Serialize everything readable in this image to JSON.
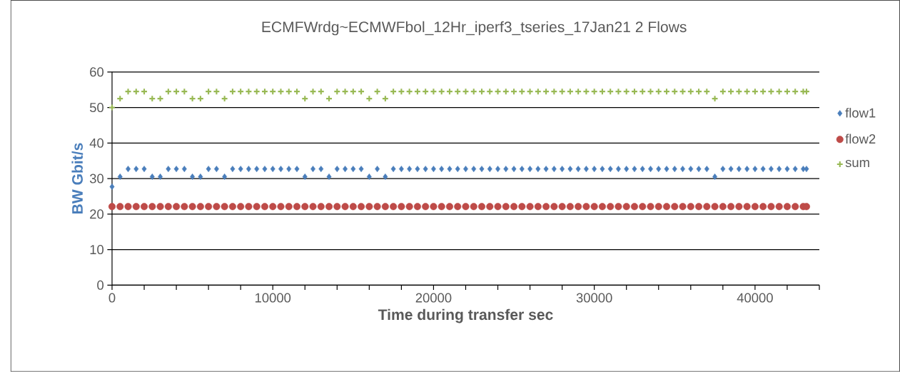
{
  "chart_data": {
    "type": "scatter",
    "title": "ECMFWrdg~ECMWFbol_12Hr_iperf3_tseries_17Jan21 2 Flows",
    "xlabel": "Time during transfer sec",
    "ylabel": "BW Gbit/s",
    "x": [
      0,
      500,
      1000,
      1500,
      2000,
      2500,
      3000,
      3500,
      4000,
      4500,
      5000,
      5500,
      6000,
      6500,
      7000,
      7500,
      8000,
      8500,
      9000,
      9500,
      10000,
      10500,
      11000,
      11500,
      12000,
      12500,
      13000,
      13500,
      14000,
      14500,
      15000,
      15500,
      16000,
      16500,
      17000,
      17500,
      18000,
      18500,
      19000,
      19500,
      20000,
      20500,
      21000,
      21500,
      22000,
      22500,
      23000,
      23500,
      24000,
      24500,
      25000,
      25500,
      26000,
      26500,
      27000,
      27500,
      28000,
      28500,
      29000,
      29500,
      30000,
      30500,
      31000,
      31500,
      32000,
      32500,
      33000,
      33500,
      34000,
      34500,
      35000,
      35500,
      36000,
      36500,
      37000,
      37500,
      38000,
      38500,
      39000,
      39500,
      40000,
      40500,
      41000,
      41500,
      42000,
      42500,
      43000,
      43200
    ],
    "series": [
      {
        "name": "flow1",
        "color": "#4a7ebb",
        "marker": "diamond",
        "values": [
          27.7,
          30.5,
          32.7,
          32.7,
          32.7,
          30.5,
          30.5,
          32.7,
          32.7,
          32.7,
          30.5,
          30.5,
          32.7,
          32.7,
          30.5,
          32.7,
          32.7,
          32.7,
          32.7,
          32.7,
          32.7,
          32.7,
          32.7,
          32.7,
          30.5,
          32.7,
          32.7,
          30.5,
          32.7,
          32.7,
          32.7,
          32.7,
          30.5,
          32.7,
          30.5,
          32.7,
          32.7,
          32.7,
          32.7,
          32.7,
          32.7,
          32.7,
          32.7,
          32.7,
          32.7,
          32.7,
          32.7,
          32.7,
          32.7,
          32.7,
          32.7,
          32.7,
          32.7,
          32.7,
          32.7,
          32.7,
          32.7,
          32.7,
          32.7,
          32.7,
          32.7,
          32.7,
          32.7,
          32.7,
          32.7,
          32.7,
          32.7,
          32.7,
          32.7,
          32.7,
          32.7,
          32.7,
          32.7,
          32.7,
          32.7,
          30.5,
          32.7,
          32.7,
          32.7,
          32.7,
          32.7,
          32.7,
          32.7,
          32.7,
          32.7,
          32.7,
          32.7,
          32.7
        ]
      },
      {
        "name": "flow2",
        "color": "#be4b48",
        "marker": "circle",
        "values": [
          22.1,
          22.1,
          22.1,
          22.1,
          22.1,
          22.1,
          22.1,
          22.1,
          22.1,
          22.1,
          22.1,
          22.1,
          22.1,
          22.1,
          22.1,
          22.1,
          22.1,
          22.1,
          22.1,
          22.1,
          22.1,
          22.1,
          22.1,
          22.1,
          22.1,
          22.1,
          22.1,
          22.1,
          22.1,
          22.1,
          22.1,
          22.1,
          22.1,
          22.1,
          22.1,
          22.1,
          22.1,
          22.1,
          22.1,
          22.1,
          22.1,
          22.1,
          22.1,
          22.1,
          22.1,
          22.1,
          22.1,
          22.1,
          22.1,
          22.1,
          22.1,
          22.1,
          22.1,
          22.1,
          22.1,
          22.1,
          22.1,
          22.1,
          22.1,
          22.1,
          22.1,
          22.1,
          22.1,
          22.1,
          22.1,
          22.1,
          22.1,
          22.1,
          22.1,
          22.1,
          22.1,
          22.1,
          22.1,
          22.1,
          22.1,
          22.1,
          22.1,
          22.1,
          22.1,
          22.1,
          22.1,
          22.1,
          22.1,
          22.1,
          22.1,
          22.1,
          22.1,
          22.1
        ]
      },
      {
        "name": "sum",
        "color": "#98b954",
        "marker": "cross",
        "values": [
          50.0,
          52.5,
          54.5,
          54.5,
          54.5,
          52.5,
          52.5,
          54.5,
          54.5,
          54.5,
          52.5,
          52.5,
          54.5,
          54.5,
          52.5,
          54.5,
          54.5,
          54.5,
          54.5,
          54.5,
          54.5,
          54.5,
          54.5,
          54.5,
          52.5,
          54.5,
          54.5,
          52.5,
          54.5,
          54.5,
          54.5,
          54.5,
          52.5,
          54.5,
          52.5,
          54.5,
          54.5,
          54.5,
          54.5,
          54.5,
          54.5,
          54.5,
          54.5,
          54.5,
          54.5,
          54.5,
          54.5,
          54.5,
          54.5,
          54.5,
          54.5,
          54.5,
          54.5,
          54.5,
          54.5,
          54.5,
          54.5,
          54.5,
          54.5,
          54.5,
          54.5,
          54.5,
          54.5,
          54.5,
          54.5,
          54.5,
          54.5,
          54.5,
          54.5,
          54.5,
          54.5,
          54.5,
          54.5,
          54.5,
          54.5,
          52.5,
          54.5,
          54.5,
          54.5,
          54.5,
          54.5,
          54.5,
          54.5,
          54.5,
          54.5,
          54.5,
          54.5,
          54.5
        ]
      }
    ],
    "xlim": [
      0,
      44000
    ],
    "xticks": [
      0,
      {
        "value": 2000,
        "label": null
      },
      {
        "value": 4000,
        "label": null
      },
      {
        "value": 6000,
        "label": null
      },
      {
        "value": 8000,
        "label": null
      },
      10000,
      {
        "value": 12000,
        "label": null
      },
      {
        "value": 14000,
        "label": null
      },
      {
        "value": 16000,
        "label": null
      },
      {
        "value": 18000,
        "label": null
      },
      20000,
      {
        "value": 22000,
        "label": null
      },
      {
        "value": 24000,
        "label": null
      },
      {
        "value": 26000,
        "label": null
      },
      {
        "value": 28000,
        "label": null
      },
      30000,
      {
        "value": 32000,
        "label": null
      },
      {
        "value": 34000,
        "label": null
      },
      {
        "value": 36000,
        "label": null
      },
      {
        "value": 38000,
        "label": null
      },
      40000,
      {
        "value": 42000,
        "label": null
      },
      {
        "value": 44000,
        "label": null
      }
    ],
    "ylim": [
      0,
      60
    ],
    "yticks": [
      0,
      10,
      20,
      30,
      40,
      50,
      60
    ],
    "grid": "y",
    "legend": "right"
  }
}
